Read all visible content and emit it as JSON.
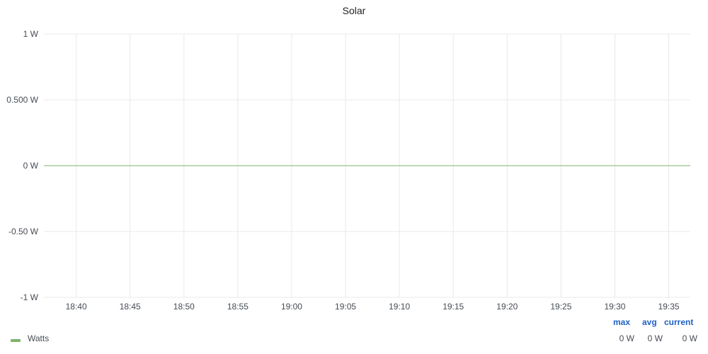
{
  "chart_data": {
    "type": "line",
    "title": "Solar",
    "y_unit": "W",
    "ylim": [
      -1,
      1
    ],
    "y_tick_labels": [
      "1 W",
      "0.500 W",
      "0 W",
      "-0.50 W",
      "-1 W"
    ],
    "y_tick_values": [
      1,
      0.5,
      0,
      -0.5,
      -1
    ],
    "x_tick_labels": [
      "18:40",
      "18:45",
      "18:50",
      "18:55",
      "19:00",
      "19:05",
      "19:10",
      "19:15",
      "19:20",
      "19:25",
      "19:30",
      "19:35"
    ],
    "xlim": [
      "18:37",
      "19:37"
    ],
    "grid": true,
    "legend_placement": "bottom",
    "series": [
      {
        "name": "Watts",
        "color": "#7eb26d",
        "x": [
          "18:37",
          "19:37"
        ],
        "values": [
          0,
          0
        ]
      }
    ],
    "legend": {
      "columns": [
        "max",
        "avg",
        "current"
      ],
      "values": {
        "max": "0 W",
        "avg": "0 W",
        "current": "0 W"
      }
    }
  }
}
